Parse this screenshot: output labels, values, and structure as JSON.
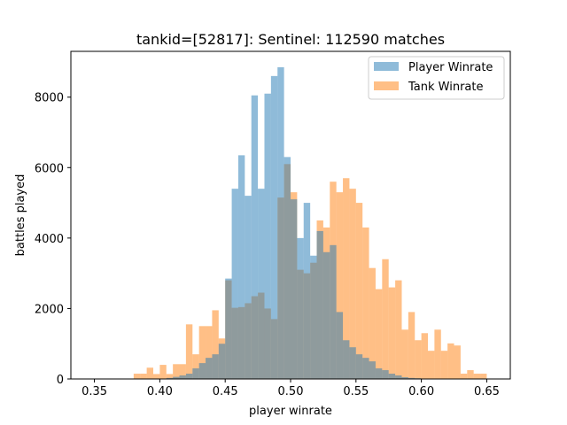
{
  "chart_data": {
    "type": "bar",
    "title": "tankid=[52817]: Sentinel: 112590 matches",
    "xlabel": "player winrate",
    "ylabel": "battles played",
    "xlim": [
      0.332,
      0.668
    ],
    "ylim": [
      0,
      9300
    ],
    "xticks": [
      0.35,
      0.4,
      0.45,
      0.5,
      0.55,
      0.6,
      0.65
    ],
    "xtick_labels": [
      "0.35",
      "0.40",
      "0.45",
      "0.50",
      "0.55",
      "0.60",
      "0.65"
    ],
    "yticks": [
      0,
      2000,
      4000,
      6000,
      8000
    ],
    "ytick_labels": [
      "0",
      "2000",
      "4000",
      "6000",
      "8000"
    ],
    "bin_width": 0.005,
    "legend_position": "top-right",
    "series": [
      {
        "name": "Tank Winrate",
        "color": "#ff7f0e",
        "alpha": 0.5,
        "bin_starts": [
          0.38,
          0.385,
          0.39,
          0.395,
          0.4,
          0.405,
          0.41,
          0.415,
          0.42,
          0.425,
          0.43,
          0.435,
          0.44,
          0.445,
          0.45,
          0.455,
          0.46,
          0.465,
          0.47,
          0.475,
          0.48,
          0.485,
          0.49,
          0.495,
          0.5,
          0.505,
          0.51,
          0.515,
          0.52,
          0.525,
          0.53,
          0.535,
          0.54,
          0.545,
          0.55,
          0.555,
          0.56,
          0.565,
          0.57,
          0.575,
          0.58,
          0.585,
          0.59,
          0.595,
          0.6,
          0.605,
          0.61,
          0.615,
          0.62,
          0.625,
          0.63,
          0.635,
          0.64,
          0.645
        ],
        "values": [
          150,
          150,
          320,
          140,
          400,
          140,
          420,
          420,
          1550,
          700,
          1500,
          1500,
          1950,
          1150,
          2800,
          2020,
          2040,
          2150,
          2350,
          2450,
          2000,
          1700,
          5150,
          6100,
          5300,
          3100,
          3000,
          3300,
          4500,
          4300,
          5600,
          5300,
          5700,
          5400,
          5000,
          4300,
          3150,
          2550,
          3400,
          2600,
          2800,
          1400,
          1900,
          1100,
          1300,
          800,
          1400,
          800,
          1010,
          950,
          150,
          250,
          150,
          150
        ]
      },
      {
        "name": "Player Winrate",
        "color": "#1f77b4",
        "alpha": 0.5,
        "bin_starts": [
          0.405,
          0.41,
          0.415,
          0.42,
          0.425,
          0.43,
          0.435,
          0.44,
          0.445,
          0.45,
          0.455,
          0.46,
          0.465,
          0.47,
          0.475,
          0.48,
          0.485,
          0.49,
          0.495,
          0.5,
          0.505,
          0.51,
          0.515,
          0.52,
          0.525,
          0.53,
          0.535,
          0.54,
          0.545,
          0.55,
          0.555,
          0.56,
          0.565,
          0.57,
          0.575,
          0.58,
          0.585,
          0.59,
          0.595
        ],
        "values": [
          30,
          60,
          100,
          150,
          300,
          450,
          600,
          700,
          1000,
          2850,
          5400,
          6350,
          5200,
          8050,
          5400,
          8100,
          8600,
          8850,
          6300,
          5100,
          4000,
          5000,
          3500,
          4200,
          3600,
          3800,
          1900,
          1100,
          900,
          700,
          600,
          500,
          300,
          250,
          150,
          100,
          50,
          30,
          20
        ]
      }
    ]
  }
}
